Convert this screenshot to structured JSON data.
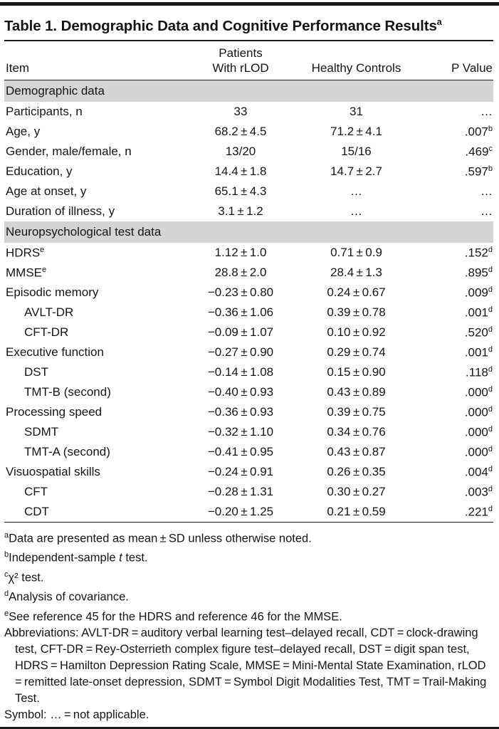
{
  "title": {
    "label": "Table 1. Demographic Data and Cognitive Performance Results",
    "sup": "a"
  },
  "header": {
    "item": "Item",
    "patients": "Patients\nWith rLOD",
    "controls": "Healthy Controls",
    "pvalue": "P Value"
  },
  "rows": [
    {
      "type": "section",
      "label": "Demographic data"
    },
    {
      "type": "data",
      "item": "Participants, n",
      "patients": "33",
      "controls": "31",
      "p": "…"
    },
    {
      "type": "data",
      "item": "Age, y",
      "patients": "68.2 ± 4.5",
      "controls": "71.2 ± 4.1",
      "p": ".007",
      "p_sup": "b"
    },
    {
      "type": "data",
      "item": "Gender, male/female, n",
      "patients": "13/20",
      "controls": "15/16",
      "p": ".469",
      "p_sup": "c"
    },
    {
      "type": "data",
      "item": "Education, y",
      "patients": "14.4 ± 1.8",
      "controls": "14.7 ± 2.7",
      "p": ".597",
      "p_sup": "b"
    },
    {
      "type": "data",
      "item": "Age at onset, y",
      "patients": "65.1 ± 4.3",
      "controls": "…",
      "p": "…"
    },
    {
      "type": "data",
      "item": "Duration of illness, y",
      "patients": "3.1 ± 1.2",
      "controls": "…",
      "p": "…"
    },
    {
      "type": "section",
      "label": "Neuropsychological test data"
    },
    {
      "type": "data",
      "item": "HDRS",
      "item_sup": "e",
      "patients": "1.12 ± 1.0",
      "controls": "0.71 ± 0.9",
      "p": ".152",
      "p_sup": "d"
    },
    {
      "type": "data",
      "item": "MMSE",
      "item_sup": "e",
      "patients": "28.8 ± 2.0",
      "controls": "28.4 ± 1.3",
      "p": ".895",
      "p_sup": "d"
    },
    {
      "type": "data",
      "item": "Episodic memory",
      "patients": "−0.23 ± 0.80",
      "controls": "0.24 ± 0.67",
      "p": ".009",
      "p_sup": "d"
    },
    {
      "type": "data",
      "indent": true,
      "item": "AVLT-DR",
      "patients": "−0.36 ± 1.06",
      "controls": "0.39 ± 0.78",
      "p": ".001",
      "p_sup": "d"
    },
    {
      "type": "data",
      "indent": true,
      "item": "CFT-DR",
      "patients": "−0.09 ± 1.07",
      "controls": "0.10 ± 0.92",
      "p": ".520",
      "p_sup": "d"
    },
    {
      "type": "data",
      "item": "Executive function",
      "patients": "−0.27 ± 0.90",
      "controls": "0.29 ± 0.74",
      "p": ".001",
      "p_sup": "d"
    },
    {
      "type": "data",
      "indent": true,
      "item": "DST",
      "patients": "−0.14 ± 1.08",
      "controls": "0.15 ± 0.90",
      "p": ".118",
      "p_sup": "d"
    },
    {
      "type": "data",
      "indent": true,
      "item": "TMT-B (second)",
      "patients": "−0.40 ± 0.93",
      "controls": "0.43 ± 0.89",
      "p": ".000",
      "p_sup": "d"
    },
    {
      "type": "data",
      "item": "Processing speed",
      "patients": "−0.36 ± 0.93",
      "controls": "0.39 ± 0.75",
      "p": ".000",
      "p_sup": "d"
    },
    {
      "type": "data",
      "indent": true,
      "item": "SDMT",
      "patients": "−0.32 ± 1.10",
      "controls": "0.34 ± 0.76",
      "p": ".000",
      "p_sup": "d"
    },
    {
      "type": "data",
      "indent": true,
      "item": "TMT-A (second)",
      "patients": "−0.41 ± 0.95",
      "controls": "0.43 ± 0.87",
      "p": ".000",
      "p_sup": "d"
    },
    {
      "type": "data",
      "item": "Visuospatial skills",
      "patients": "−0.24 ± 0.91",
      "controls": "0.26 ± 0.35",
      "p": ".004",
      "p_sup": "d"
    },
    {
      "type": "data",
      "indent": true,
      "item": "CFT",
      "patients": "−0.28 ± 1.31",
      "controls": "0.30 ± 0.27",
      "p": ".003",
      "p_sup": "d"
    },
    {
      "type": "data",
      "indent": true,
      "item": "CDT",
      "patients": "−0.20 ± 1.25",
      "controls": "0.21 ± 0.59",
      "p": ".221",
      "p_sup": "d"
    }
  ],
  "footnotes": {
    "a": {
      "sup": "a",
      "text": "Data are presented as mean ± SD unless otherwise noted."
    },
    "b": {
      "sup": "b",
      "pre": "Independent-sample ",
      "italic": "t",
      "post": " test."
    },
    "c": {
      "sup": "c",
      "text": "χ² test."
    },
    "d": {
      "sup": "d",
      "text": "Analysis of covariance."
    },
    "e": {
      "sup": "e",
      "text": "See reference 45 for the HDRS and reference 46 for the MMSE."
    },
    "abbreviations": "Abbreviations: AVLT-DR = auditory verbal learning test–delayed recall, CDT = clock-drawing test, CFT-DR = Rey-Osterrieth complex figure test–delayed recall, DST = digit span test, HDRS = Hamilton Depression Rating Scale, MMSE = Mini-Mental State Examination, rLOD = remitted late-onset depression, SDMT = Symbol Digit Modalities Test, TMT = Trail-Making Test.",
    "symbol": "Symbol: … = not applicable."
  }
}
